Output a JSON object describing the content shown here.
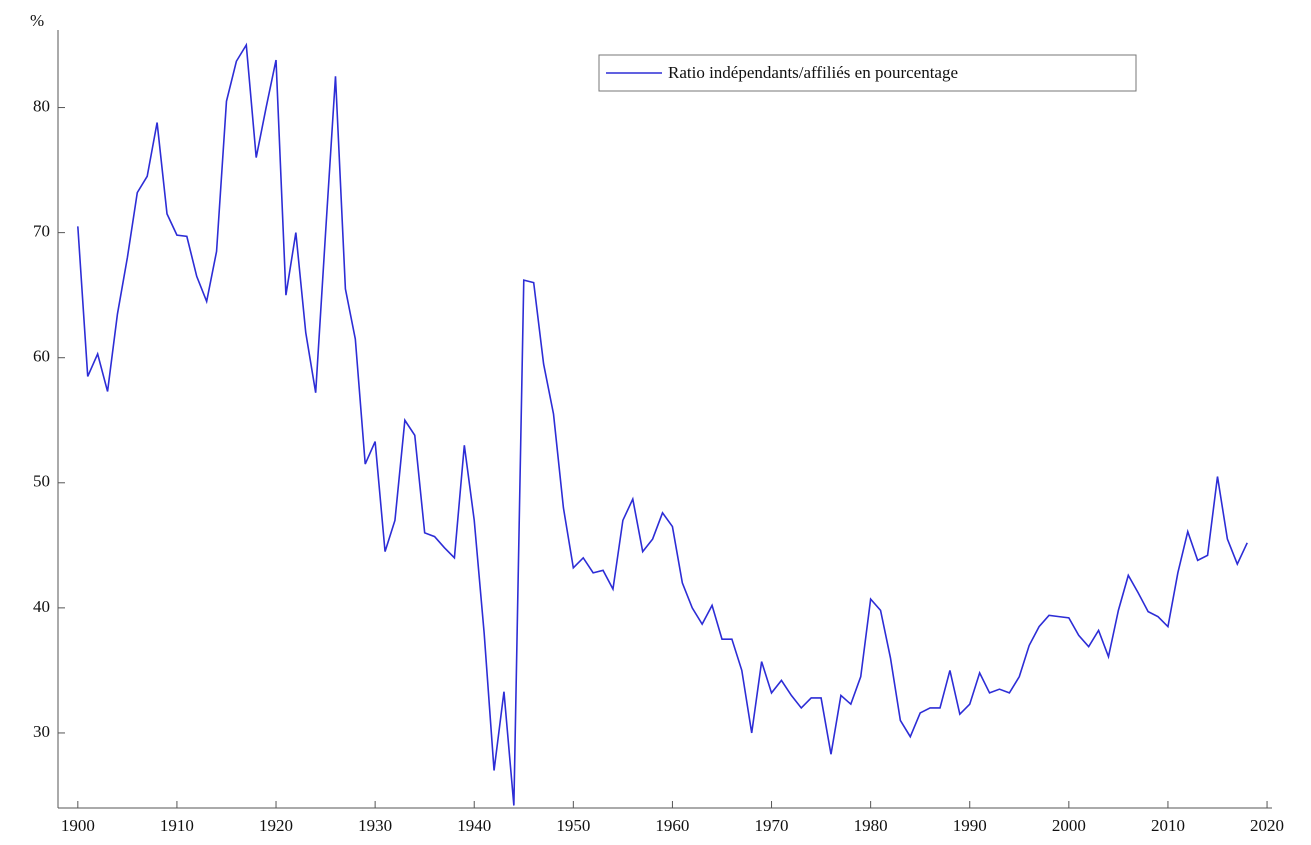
{
  "chart_data": {
    "type": "line",
    "y_label": "%",
    "x": [
      1900,
      1901,
      1902,
      1903,
      1904,
      1905,
      1906,
      1907,
      1908,
      1909,
      1910,
      1911,
      1912,
      1913,
      1914,
      1915,
      1916,
      1917,
      1918,
      1919,
      1920,
      1921,
      1922,
      1923,
      1924,
      1925,
      1926,
      1927,
      1928,
      1929,
      1930,
      1931,
      1932,
      1933,
      1934,
      1935,
      1936,
      1937,
      1938,
      1939,
      1940,
      1941,
      1942,
      1943,
      1944,
      1945,
      1946,
      1947,
      1948,
      1949,
      1950,
      1951,
      1952,
      1953,
      1954,
      1955,
      1956,
      1957,
      1958,
      1959,
      1960,
      1961,
      1962,
      1963,
      1964,
      1965,
      1966,
      1967,
      1968,
      1969,
      1970,
      1971,
      1972,
      1973,
      1974,
      1975,
      1976,
      1977,
      1978,
      1979,
      1980,
      1981,
      1982,
      1983,
      1984,
      1985,
      1986,
      1987,
      1988,
      1989,
      1990,
      1991,
      1992,
      1993,
      1994,
      1995,
      1996,
      1997,
      1998,
      1999,
      2000,
      2001,
      2002,
      2003,
      2004,
      2005,
      2006,
      2007,
      2008,
      2009,
      2010,
      2011,
      2012,
      2013,
      2014,
      2015,
      2016,
      2017,
      2018
    ],
    "series": [
      {
        "name": "Ratio indépendants/affiliés en pourcentage",
        "color": "#2d2dd6",
        "values": [
          70.5,
          58.5,
          60.3,
          57.3,
          63.5,
          68,
          73.2,
          74.5,
          78.8,
          71.5,
          69.8,
          69.7,
          66.5,
          64.5,
          68.5,
          80.5,
          83.7,
          85,
          76,
          80,
          83.8,
          65,
          70,
          62,
          57.2,
          70,
          82.5,
          65.5,
          61.5,
          51.5,
          53.3,
          44.5,
          47,
          55,
          53.8,
          46,
          45.7,
          44.8,
          44,
          53,
          47,
          38,
          27,
          33.3,
          24.2,
          66.2,
          66,
          59.5,
          55.5,
          48,
          43.2,
          44,
          42.8,
          43,
          41.5,
          47,
          48.7,
          44.5,
          45.5,
          47.6,
          46.5,
          42,
          40,
          38.7,
          40.2,
          37.5,
          37.5,
          35,
          30,
          35.7,
          33.2,
          34.2,
          33,
          32,
          32.8,
          32.8,
          28.3,
          33,
          32.3,
          34.5,
          40.7,
          39.8,
          36,
          31,
          29.7,
          31.6,
          32,
          32,
          35,
          31.5,
          32.3,
          34.8,
          33.2,
          33.5,
          33.2,
          34.5,
          37,
          38.5,
          39.4,
          39.3,
          39.2,
          37.8,
          36.9,
          38.2,
          36.1,
          39.8,
          42.6,
          41.2,
          39.7,
          39.3,
          38.5,
          42.8,
          46.1,
          43.8,
          44.2,
          50.5,
          45.5,
          43.5,
          45.2
        ]
      }
    ],
    "xlim": [
      1898,
      2020.5
    ],
    "ylim": [
      24,
      86.2
    ],
    "xticks": [
      1900,
      1910,
      1920,
      1930,
      1940,
      1950,
      1960,
      1970,
      1980,
      1990,
      2000,
      2010,
      2020
    ],
    "yticks": [
      30,
      40,
      50,
      60,
      70,
      80
    ],
    "legend": "top-right"
  }
}
